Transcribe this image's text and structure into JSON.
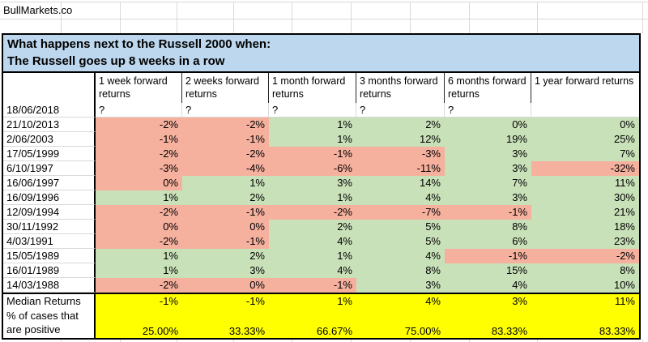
{
  "brand": {
    "label": "BullMarkets.co"
  },
  "title": {
    "line1": "What happens next to the Russell 2000 when:",
    "line2": "The Russell goes up 8 weeks in a row"
  },
  "table": {
    "column_headers": [
      "1 week forward returns",
      "2 weeks forward returns",
      "1 month forward returns",
      "3 months forward returns",
      "6 months forward returns",
      "1 year forward returns"
    ],
    "pending_row": {
      "date": "18/06/2018",
      "values": [
        "?",
        "?",
        "?",
        "?",
        "?",
        ""
      ]
    },
    "rows": [
      {
        "date": "21/10/2013",
        "values": [
          "-2%",
          "-2%",
          "1%",
          "2%",
          "0%",
          "0%"
        ],
        "colors": [
          "r",
          "r",
          "g",
          "g",
          "g",
          "g"
        ]
      },
      {
        "date": "2/06/2003",
        "values": [
          "-1%",
          "-1%",
          "1%",
          "12%",
          "19%",
          "25%"
        ],
        "colors": [
          "r",
          "r",
          "g",
          "g",
          "g",
          "g"
        ]
      },
      {
        "date": "17/05/1999",
        "values": [
          "-2%",
          "-2%",
          "-1%",
          "-3%",
          "3%",
          "7%"
        ],
        "colors": [
          "r",
          "r",
          "r",
          "r",
          "g",
          "g"
        ]
      },
      {
        "date": "6/10/1997",
        "values": [
          "-3%",
          "-4%",
          "-6%",
          "-11%",
          "3%",
          "-32%"
        ],
        "colors": [
          "r",
          "r",
          "r",
          "r",
          "g",
          "r"
        ]
      },
      {
        "date": "16/06/1997",
        "values": [
          "0%",
          "1%",
          "3%",
          "14%",
          "7%",
          "11%"
        ],
        "colors": [
          "r",
          "g",
          "g",
          "g",
          "g",
          "g"
        ]
      },
      {
        "date": "16/09/1996",
        "values": [
          "1%",
          "2%",
          "1%",
          "4%",
          "3%",
          "30%"
        ],
        "colors": [
          "g",
          "g",
          "g",
          "g",
          "g",
          "g"
        ]
      },
      {
        "date": "12/09/1994",
        "values": [
          "-2%",
          "-1%",
          "-2%",
          "-7%",
          "-1%",
          "21%"
        ],
        "colors": [
          "r",
          "r",
          "r",
          "r",
          "r",
          "g"
        ]
      },
      {
        "date": "30/11/1992",
        "values": [
          "0%",
          "0%",
          "2%",
          "5%",
          "8%",
          "18%"
        ],
        "colors": [
          "r",
          "r",
          "g",
          "g",
          "g",
          "g"
        ]
      },
      {
        "date": "4/03/1991",
        "values": [
          "-2%",
          "-1%",
          "4%",
          "5%",
          "6%",
          "23%"
        ],
        "colors": [
          "r",
          "r",
          "g",
          "g",
          "g",
          "g"
        ]
      },
      {
        "date": "15/05/1989",
        "values": [
          "1%",
          "2%",
          "1%",
          "4%",
          "-1%",
          "-2%"
        ],
        "colors": [
          "g",
          "g",
          "g",
          "g",
          "r",
          "r"
        ]
      },
      {
        "date": "16/01/1989",
        "values": [
          "1%",
          "3%",
          "4%",
          "8%",
          "15%",
          "8%"
        ],
        "colors": [
          "g",
          "g",
          "g",
          "g",
          "g",
          "g"
        ]
      },
      {
        "date": "14/03/1988",
        "values": [
          "-2%",
          "0%",
          "-1%",
          "3%",
          "4%",
          "10%"
        ],
        "colors": [
          "r",
          "r",
          "r",
          "g",
          "g",
          "g"
        ]
      }
    ],
    "median_row": {
      "label": "Median Returns",
      "values": [
        "-1%",
        "-1%",
        "1%",
        "4%",
        "3%",
        "11%"
      ]
    },
    "percent_positive_row": {
      "label": "% of cases that are positive",
      "values": [
        "25.00%",
        "33.33%",
        "66.67%",
        "75.00%",
        "83.33%",
        "83.33%"
      ]
    }
  },
  "colors": {
    "negative_cell": "#f5b09e",
    "positive_cell": "#c9e1b9",
    "summary_cell": "#ffff00",
    "banner_bg": "#bdd7ee",
    "gridline": "#d9d9d9",
    "border": "#000000"
  }
}
